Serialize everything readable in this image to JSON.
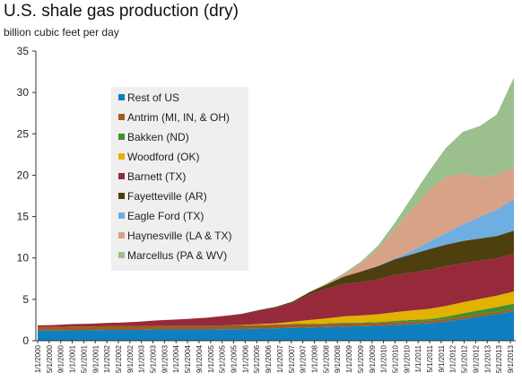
{
  "chart_data": {
    "type": "area",
    "title": "U.S. shale gas production (dry)",
    "subtitle": "billion cubic feet per day",
    "xlabel": "",
    "ylabel": "",
    "ylim": [
      0,
      35
    ],
    "yticks": [
      0,
      5,
      10,
      15,
      20,
      25,
      30,
      35
    ],
    "grid": false,
    "legend_placement": "upper-left inside plot",
    "x_tick_labels": [
      "1/1/2000",
      "5/1/2000",
      "9/1/2000",
      "1/1/2001",
      "5/1/2001",
      "9/1/2001",
      "1/1/2002",
      "5/1/2002",
      "9/1/2002",
      "1/1/2003",
      "5/1/2003",
      "9/1/2003",
      "1/1/2004",
      "5/1/2004",
      "9/1/2004",
      "1/1/2005",
      "5/1/2005",
      "9/1/2005",
      "1/1/2006",
      "5/1/2006",
      "9/1/2006",
      "1/1/2007",
      "5/1/2007",
      "9/1/2007",
      "1/1/2008",
      "5/1/2008",
      "9/1/2008",
      "1/1/2009",
      "5/1/2009",
      "9/1/2009",
      "1/1/2010",
      "5/1/2010",
      "9/1/2010",
      "1/1/2011",
      "5/1/2011",
      "9/1/2011",
      "1/1/2012",
      "5/1/2012",
      "9/1/2012",
      "1/1/2013",
      "5/1/2013",
      "9/1/2013"
    ],
    "x": [
      "2000-01",
      "2000-07",
      "2001-01",
      "2001-07",
      "2002-01",
      "2002-07",
      "2003-01",
      "2003-07",
      "2004-01",
      "2004-07",
      "2005-01",
      "2005-07",
      "2006-01",
      "2006-07",
      "2007-01",
      "2007-07",
      "2008-01",
      "2008-07",
      "2009-01",
      "2009-07",
      "2010-01",
      "2010-07",
      "2011-01",
      "2011-07",
      "2012-01",
      "2012-07",
      "2013-01",
      "2013-07",
      "2013-12"
    ],
    "series": [
      {
        "name": "Rest of US",
        "color": "#0f7fbf",
        "values": [
          1.2,
          1.2,
          1.25,
          1.25,
          1.3,
          1.3,
          1.3,
          1.35,
          1.35,
          1.35,
          1.35,
          1.4,
          1.4,
          1.45,
          1.5,
          1.55,
          1.6,
          1.65,
          1.7,
          1.75,
          1.8,
          1.9,
          2.0,
          2.1,
          2.3,
          2.6,
          2.9,
          3.2,
          3.6
        ]
      },
      {
        "name": "Antrim (MI, IN, & OH)",
        "color": "#9c5d21",
        "values": [
          0.45,
          0.45,
          0.45,
          0.45,
          0.45,
          0.45,
          0.45,
          0.45,
          0.45,
          0.45,
          0.45,
          0.45,
          0.45,
          0.45,
          0.45,
          0.45,
          0.4,
          0.4,
          0.4,
          0.35,
          0.35,
          0.35,
          0.3,
          0.3,
          0.3,
          0.3,
          0.3,
          0.3,
          0.3
        ]
      },
      {
        "name": "Bakken (ND)",
        "color": "#3f8f2f",
        "values": [
          0,
          0,
          0,
          0,
          0,
          0,
          0,
          0,
          0,
          0,
          0,
          0,
          0,
          0,
          0,
          0.05,
          0.05,
          0.05,
          0.1,
          0.1,
          0.1,
          0.15,
          0.2,
          0.2,
          0.3,
          0.4,
          0.5,
          0.55,
          0.6
        ]
      },
      {
        "name": "Woodford (OK)",
        "color": "#e2b200",
        "values": [
          0,
          0,
          0,
          0,
          0,
          0,
          0,
          0,
          0,
          0,
          0,
          0,
          0.05,
          0.1,
          0.15,
          0.25,
          0.45,
          0.6,
          0.75,
          0.85,
          0.95,
          1.05,
          1.15,
          1.25,
          1.3,
          1.35,
          1.35,
          1.4,
          1.45
        ]
      },
      {
        "name": "Barnett (TX)",
        "color": "#962a3a",
        "values": [
          0.2,
          0.25,
          0.3,
          0.35,
          0.4,
          0.45,
          0.55,
          0.65,
          0.75,
          0.85,
          1.0,
          1.15,
          1.3,
          1.6,
          1.9,
          2.3,
          3.1,
          3.6,
          3.9,
          4.0,
          4.2,
          4.5,
          4.6,
          4.7,
          4.8,
          4.7,
          4.6,
          4.5,
          4.6
        ]
      },
      {
        "name": "Fayetteville (AR)",
        "color": "#4e3f0f",
        "values": [
          0,
          0,
          0,
          0,
          0,
          0,
          0,
          0,
          0,
          0,
          0,
          0,
          0.05,
          0.1,
          0.1,
          0.15,
          0.3,
          0.5,
          0.9,
          1.3,
          1.6,
          1.9,
          2.2,
          2.5,
          2.6,
          2.7,
          2.7,
          2.7,
          2.75
        ]
      },
      {
        "name": "Eagle Ford (TX)",
        "color": "#6eaee0",
        "values": [
          0,
          0,
          0,
          0,
          0,
          0,
          0,
          0,
          0,
          0,
          0,
          0,
          0,
          0,
          0,
          0,
          0,
          0,
          0,
          0,
          0.05,
          0.1,
          0.4,
          0.9,
          1.4,
          2.0,
          2.6,
          3.2,
          3.8
        ]
      },
      {
        "name": "Haynesville (LA & TX)",
        "color": "#d8a287",
        "values": [
          0,
          0,
          0,
          0,
          0,
          0,
          0,
          0,
          0,
          0,
          0,
          0,
          0,
          0,
          0,
          0,
          0,
          0.1,
          0.3,
          1.0,
          2.0,
          3.5,
          5.0,
          6.2,
          6.8,
          6.2,
          4.8,
          4.2,
          3.9
        ]
      },
      {
        "name": "Marcellus (PA & WV)",
        "color": "#9cbf8e",
        "values": [
          0,
          0,
          0,
          0,
          0,
          0,
          0,
          0,
          0,
          0,
          0,
          0,
          0,
          0,
          0,
          0,
          0,
          0.05,
          0.1,
          0.2,
          0.4,
          0.8,
          1.5,
          2.3,
          3.5,
          5.0,
          6.2,
          7.3,
          10.8
        ]
      }
    ]
  }
}
